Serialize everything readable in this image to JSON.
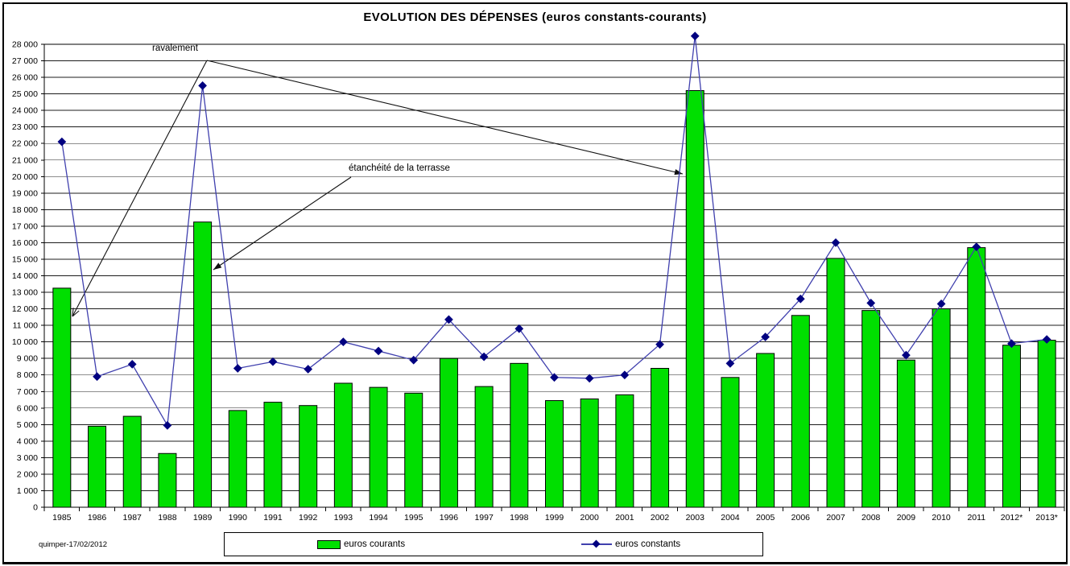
{
  "page": {
    "footer_note": "quimper-17/02/2012"
  },
  "chart_data": {
    "type": "bar",
    "title": "EVOLUTION DES DÉPENSES (euros constants-courants)",
    "categories": [
      "1985",
      "1986",
      "1987",
      "1988",
      "1989",
      "1990",
      "1991",
      "1992",
      "1993",
      "1994",
      "1995",
      "1996",
      "1997",
      "1998",
      "1999",
      "2000",
      "2001",
      "2002",
      "2003",
      "2004",
      "2005",
      "2006",
      "2007",
      "2008",
      "2009",
      "2010",
      "2011",
      "2012*",
      "2013*"
    ],
    "series": [
      {
        "name": "euros courants",
        "type": "bar",
        "color": "#00DF00",
        "border_color": "#000000",
        "values": [
          13250,
          4900,
          5500,
          3250,
          17250,
          5850,
          6350,
          6150,
          7500,
          7250,
          6900,
          9000,
          7300,
          8700,
          6450,
          6550,
          6800,
          8400,
          25200,
          7850,
          9300,
          11600,
          15050,
          11900,
          8900,
          12000,
          15700,
          9800,
          10100
        ]
      },
      {
        "name": "euros constants",
        "type": "line",
        "color": "#4040AE",
        "marker": "diamond",
        "marker_color": "#000080",
        "values": [
          22100,
          7900,
          8650,
          4950,
          25500,
          8400,
          8800,
          8350,
          10000,
          9450,
          8900,
          11350,
          9100,
          10800,
          7850,
          7800,
          8000,
          9850,
          28500,
          8700,
          10300,
          12600,
          16000,
          12350,
          9200,
          12300,
          15750,
          9900,
          10150
        ]
      }
    ],
    "ylim": [
      0,
      28000
    ],
    "ytick_step": 1000,
    "ytick_label_format": "thousands with space (e.g. 28 000)",
    "grid": "horizontal",
    "legend_position": "bottom",
    "annotations": [
      {
        "text": "ravalement",
        "targets": [
          "1985",
          "2003"
        ]
      },
      {
        "text": "étanchéité de la terrasse",
        "targets": [
          "1989"
        ]
      }
    ]
  }
}
